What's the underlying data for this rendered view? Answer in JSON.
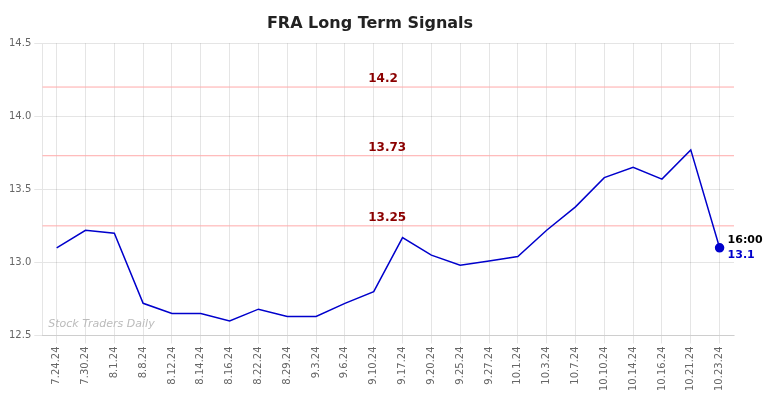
{
  "chart_data": {
    "type": "line",
    "title": "FRA Long Term Signals",
    "categories": [
      "7.24.24",
      "7.30.24",
      "8.1.24",
      "8.8.24",
      "8.12.24",
      "8.14.24",
      "8.16.24",
      "8.22.24",
      "8.29.24",
      "9.3.24",
      "9.6.24",
      "9.10.24",
      "9.17.24",
      "9.20.24",
      "9.25.24",
      "9.27.24",
      "10.1.24",
      "10.3.24",
      "10.7.24",
      "10.10.24",
      "10.14.24",
      "10.16.24",
      "10.21.24",
      "10.23.24"
    ],
    "values": [
      13.1,
      13.22,
      13.2,
      12.72,
      12.65,
      12.65,
      12.6,
      12.68,
      12.63,
      12.63,
      12.72,
      12.8,
      13.17,
      13.05,
      12.98,
      13.01,
      13.04,
      13.22,
      13.38,
      13.58,
      13.65,
      13.57,
      13.77,
      13.1
    ],
    "color": "#0000cc",
    "ylim": [
      12.5,
      14.5
    ],
    "yticks": [
      12.5,
      {
        "value": 13,
        "label": "13.0"
      },
      13.5,
      {
        "value": 14,
        "label": "14.0"
      },
      14.5
    ],
    "grid": true,
    "annotations": [
      {
        "text": "14.2",
        "y": 14.2,
        "color": "#8b0000",
        "line_color": "#ffaaaa"
      },
      {
        "text": "13.73",
        "y": 13.73,
        "color": "#8b0000",
        "line_color": "#ffaaaa"
      },
      {
        "text": "13.25",
        "y": 13.25,
        "color": "#8b0000",
        "line_color": "#ffaaaa"
      },
      {
        "text": "16:00",
        "x": "10.23.24",
        "y": 13.1,
        "color": "#000000"
      },
      {
        "text": "13.1",
        "x": "10.23.24",
        "y": 13.1,
        "color": "#0000cc"
      },
      {
        "text": "Stock Traders Daily",
        "color": "#bbbbbb"
      }
    ]
  }
}
